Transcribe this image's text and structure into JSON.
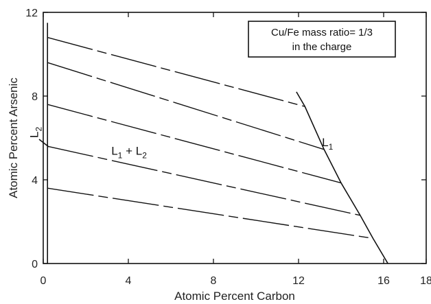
{
  "chart_data": {
    "type": "line",
    "xlabel": "Atomic Percent Carbon",
    "ylabel": "Atomic Percent Arsenic",
    "xlim": [
      0,
      18
    ],
    "ylim": [
      0,
      12
    ],
    "xticks": [
      0,
      4,
      8,
      12,
      16,
      18
    ],
    "yticks": [
      0,
      4,
      8,
      12
    ],
    "x_tick_labels": [
      "0",
      "4",
      "8",
      "12",
      "16",
      "18"
    ],
    "y_tick_labels": [
      "0",
      "4",
      "8",
      "12"
    ],
    "annotation": {
      "line1": "Cu/Fe mass ratio= 1/3",
      "line2": "in the charge"
    },
    "regions": [
      {
        "main": "L",
        "sub": "2",
        "x": -0.25,
        "y": 6.0,
        "rotate": true
      },
      {
        "main": "L",
        "sub": "1",
        "x": 13.1,
        "y": 5.6,
        "rotate": false
      },
      {
        "label": [
          "L",
          "1",
          " + L",
          "2"
        ],
        "x": 3.2,
        "y": 5.2
      }
    ],
    "l2_boundary": [
      [
        0.2,
        11.5
      ],
      [
        0.2,
        0
      ]
    ],
    "l1_boundary": [
      [
        11.9,
        8.2
      ],
      [
        12.3,
        7.5
      ],
      [
        13.2,
        5.45
      ],
      [
        14.0,
        3.85
      ],
      [
        14.9,
        2.3
      ],
      [
        15.5,
        1.2
      ],
      [
        16.2,
        0
      ]
    ],
    "tie_lines": [
      {
        "from": [
          0.2,
          10.8
        ],
        "to": [
          12.3,
          7.5
        ]
      },
      {
        "from": [
          0.2,
          9.6
        ],
        "to": [
          13.2,
          5.45
        ]
      },
      {
        "from": [
          0.2,
          7.6
        ],
        "to": [
          14.0,
          3.85
        ]
      },
      {
        "from": [
          0.2,
          5.6
        ],
        "to": [
          14.9,
          2.3
        ]
      },
      {
        "from": [
          0.2,
          3.6
        ],
        "to": [
          15.5,
          1.2
        ]
      }
    ]
  }
}
